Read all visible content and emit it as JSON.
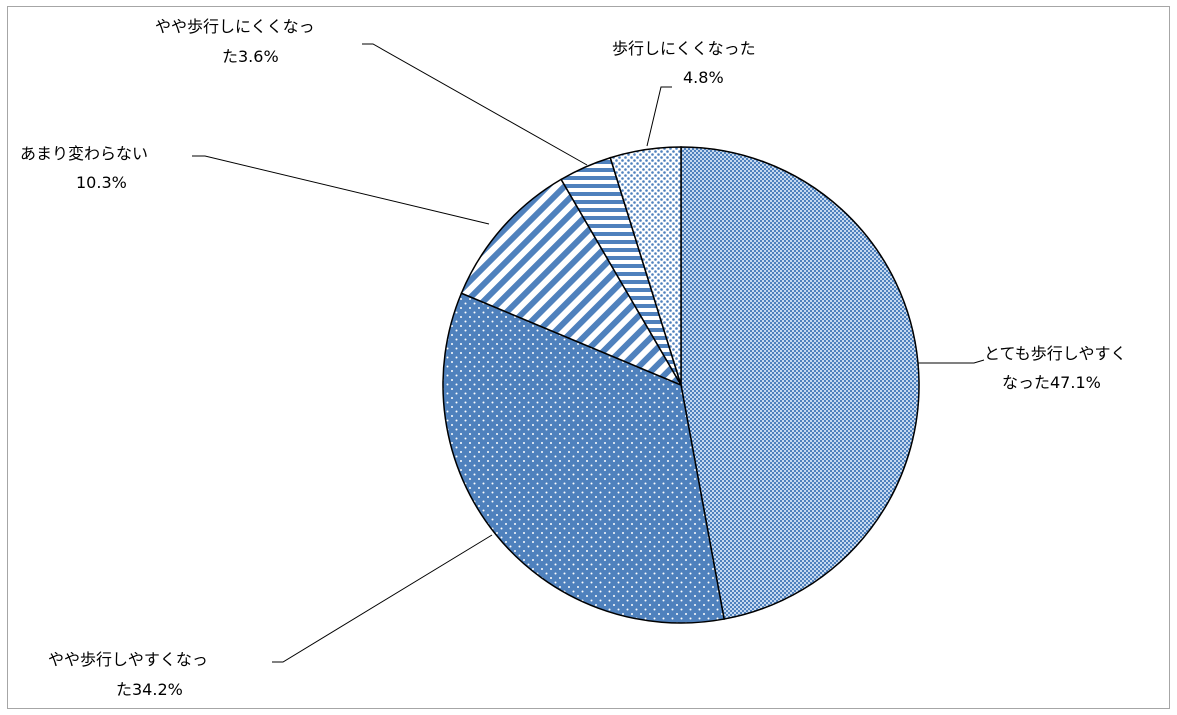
{
  "chart_data": {
    "type": "pie",
    "title": "",
    "slices": [
      {
        "line1": "とても歩行しやすく",
        "line2": "なった47.1%",
        "value": 47.1,
        "pattern": "checker"
      },
      {
        "line1": "やや歩行しやすくなっ",
        "line2": "た34.2%",
        "value": 34.2,
        "pattern": "dots-white"
      },
      {
        "line1": "あまり変わらない",
        "line2": "10.3%",
        "value": 10.3,
        "pattern": "diagonal"
      },
      {
        "line1": "やや歩行しにくくなっ",
        "line2": "た3.6%",
        "value": 3.6,
        "pattern": "horizontal"
      },
      {
        "line1": "歩行しにくくなった",
        "line2": "4.8%",
        "value": 4.8,
        "pattern": "dots-blue"
      }
    ],
    "start_angle": "12 o'clock",
    "direction": "clockwise",
    "colors": {
      "blue": "#4f81bd",
      "light": "#dbe5f1",
      "outline": "#000000"
    }
  }
}
